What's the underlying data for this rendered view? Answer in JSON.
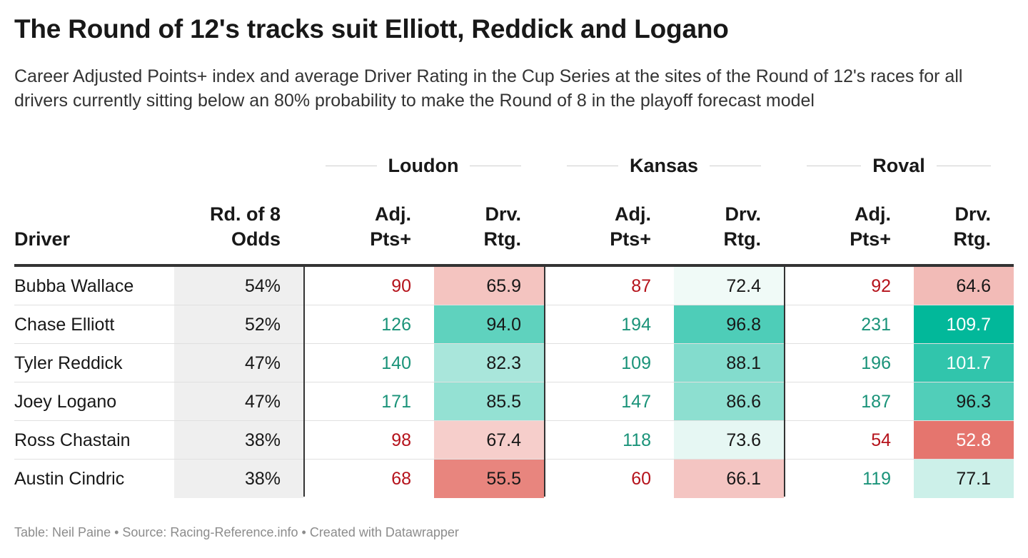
{
  "title": "The Round of 12's tracks suit Elliott, Reddick and Logano",
  "subtitle": "Career Adjusted Points+ index and average Driver Rating in the Cup Series at the sites of the Round of 12's races for all drivers currently sitting below an 80% probability to make the Round of 8 in the playoff forecast model",
  "footer": "Table: Neil Paine • Source: Racing-Reference.info • Created with Datawrapper",
  "colors": {
    "positive_text": "#1a9379",
    "negative_text": "#b5121b",
    "teal_scale_max": "#00b899",
    "red_scale_max": "#e2665e",
    "odds_background": "#efefef"
  },
  "chart_data": {
    "type": "table",
    "title": "The Round of 12's tracks suit Elliott, Reddick and Logano",
    "subtitle": "Career Adjusted Points+ index and average Driver Rating in the Cup Series at the sites of the Round of 12's races for all drivers currently sitting below an 80% probability to make the Round of 8 in the playoff forecast model",
    "column_groups": [
      "Loudon",
      "Kansas",
      "Roval"
    ],
    "headers": {
      "driver": "Driver",
      "odds_line1": "Rd. of 8",
      "odds_line2": "Odds",
      "adj_line1": "Adj.",
      "adj_line2": "Pts+",
      "drv_line1": "Drv.",
      "drv_line2": "Rtg."
    },
    "rows": [
      {
        "driver": "Bubba Wallace",
        "odds": "54%",
        "loudon_adj": "90",
        "loudon_drv": "65.9",
        "kansas_adj": "87",
        "kansas_drv": "72.4",
        "roval_adj": "92",
        "roval_drv": "64.6"
      },
      {
        "driver": "Chase Elliott",
        "odds": "52%",
        "loudon_adj": "126",
        "loudon_drv": "94.0",
        "kansas_adj": "194",
        "kansas_drv": "96.8",
        "roval_adj": "231",
        "roval_drv": "109.7"
      },
      {
        "driver": "Tyler Reddick",
        "odds": "47%",
        "loudon_adj": "140",
        "loudon_drv": "82.3",
        "kansas_adj": "109",
        "kansas_drv": "88.1",
        "roval_adj": "196",
        "roval_drv": "101.7"
      },
      {
        "driver": "Joey Logano",
        "odds": "47%",
        "loudon_adj": "171",
        "loudon_drv": "85.5",
        "kansas_adj": "147",
        "kansas_drv": "86.6",
        "roval_adj": "187",
        "roval_drv": "96.3"
      },
      {
        "driver": "Ross Chastain",
        "odds": "38%",
        "loudon_adj": "98",
        "loudon_drv": "67.4",
        "kansas_adj": "118",
        "kansas_drv": "73.6",
        "roval_adj": "54",
        "roval_drv": "52.8"
      },
      {
        "driver": "Austin Cindric",
        "odds": "38%",
        "loudon_adj": "68",
        "loudon_drv": "55.5",
        "kansas_adj": "60",
        "kansas_drv": "66.1",
        "roval_adj": "119",
        "roval_drv": "77.1"
      }
    ]
  }
}
